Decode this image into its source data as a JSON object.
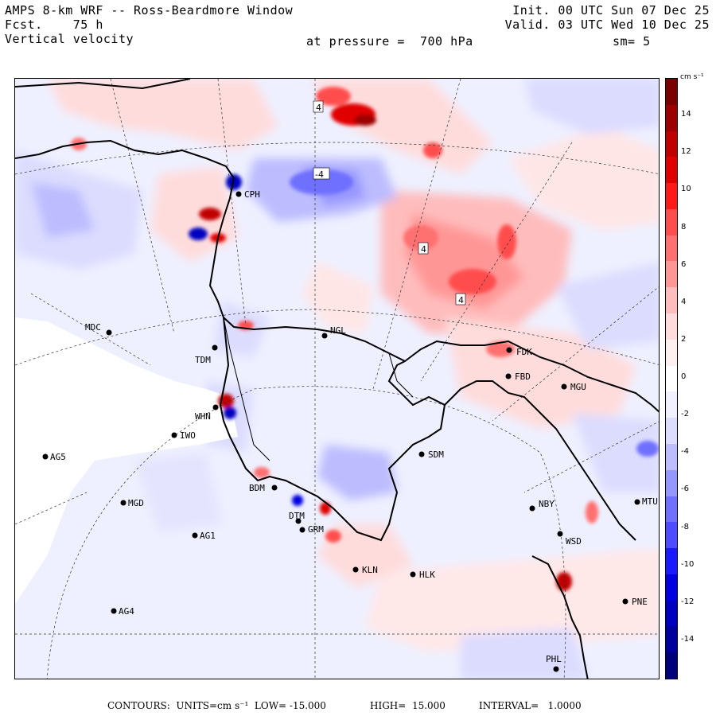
{
  "header": {
    "model": "AMPS 8-km WRF -- Ross-Beardmore Window",
    "forecast": "Fcst.    75 h",
    "field": "Vertical velocity",
    "init": "Init. 00 UTC Sun 07 Dec 25",
    "valid": "Valid. 03 UTC Wed 10 Dec 25",
    "pressure": "at pressure =  700 hPa",
    "smoothing": "sm= 5"
  },
  "colorbar": {
    "units": "cm s⁻¹",
    "tick_labels": [
      "14",
      "12",
      "10",
      "8",
      "6",
      "4",
      "2",
      "0",
      "-2",
      "-4",
      "-6",
      "-8",
      "-10",
      "-12",
      "-14"
    ],
    "colors": [
      "#7a0000",
      "#9c0000",
      "#c00000",
      "#e00000",
      "#ff1a1a",
      "#ff4d4d",
      "#ff7070",
      "#ff9696",
      "#ffbcbc",
      "#ffdcdc",
      "#fff0f0",
      "#ffffff",
      "#f0f0ff",
      "#dcdcff",
      "#bcbcff",
      "#9696ff",
      "#7070ff",
      "#4d4dff",
      "#1a1aff",
      "#0000e0",
      "#0000c0",
      "#00009c",
      "#00007a"
    ]
  },
  "contour_labels": [
    "4",
    "-4",
    "4",
    "4"
  ],
  "stations": [
    {
      "name": "CPH"
    },
    {
      "name": "MDC"
    },
    {
      "name": "NGL"
    },
    {
      "name": "TDM"
    },
    {
      "name": "FDK"
    },
    {
      "name": "FBD"
    },
    {
      "name": "MGU"
    },
    {
      "name": "WHN"
    },
    {
      "name": "IWO"
    },
    {
      "name": "AG5"
    },
    {
      "name": "SDM"
    },
    {
      "name": "MGD"
    },
    {
      "name": "BDM"
    },
    {
      "name": "DTM"
    },
    {
      "name": "GRM"
    },
    {
      "name": "AG1"
    },
    {
      "name": "NBY"
    },
    {
      "name": "MTU"
    },
    {
      "name": "WSD"
    },
    {
      "name": "KLN"
    },
    {
      "name": "HLK"
    },
    {
      "name": "AG4"
    },
    {
      "name": "PNE"
    },
    {
      "name": "PHL"
    }
  ],
  "footer": {
    "contours": "CONTOURS:  UNITS=cm s⁻¹  LOW= -15.000",
    "high": "HIGH=  15.000",
    "interval": "INTERVAL=   1.0000"
  }
}
